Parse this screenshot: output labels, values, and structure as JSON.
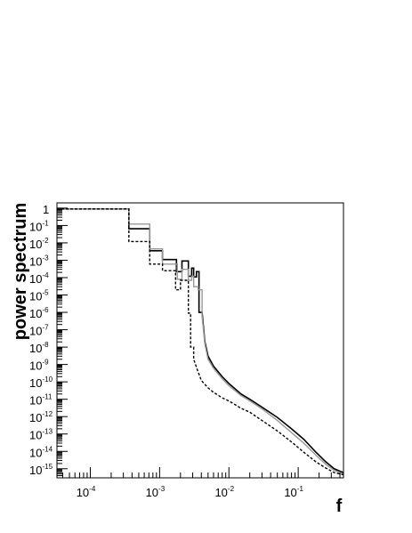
{
  "chart_data": {
    "type": "line",
    "title": "",
    "xlabel": "f",
    "ylabel": "power spectrum",
    "x_scale": "log",
    "y_scale": "log",
    "xlim": [
      3.3e-05,
      0.45
    ],
    "ylim": [
      3e-16,
      2
    ],
    "grid": false,
    "legend": "none",
    "x_ticks": [
      {
        "base": "10",
        "exp": "-4",
        "value": 0.0001
      },
      {
        "base": "10",
        "exp": "-3",
        "value": 0.001
      },
      {
        "base": "10",
        "exp": "-2",
        "value": 0.01
      },
      {
        "base": "10",
        "exp": "-1",
        "value": 0.1
      }
    ],
    "y_ticks": [
      {
        "base": "1",
        "exp": "",
        "value": 1
      },
      {
        "base": "10",
        "exp": "-1",
        "value": 0.1
      },
      {
        "base": "10",
        "exp": "-2",
        "value": 0.01
      },
      {
        "base": "10",
        "exp": "-3",
        "value": 0.001
      },
      {
        "base": "10",
        "exp": "-4",
        "value": 0.0001
      },
      {
        "base": "10",
        "exp": "-5",
        "value": 1e-05
      },
      {
        "base": "10",
        "exp": "-6",
        "value": 1e-06
      },
      {
        "base": "10",
        "exp": "-7",
        "value": 1e-07
      },
      {
        "base": "10",
        "exp": "-8",
        "value": 1e-08
      },
      {
        "base": "10",
        "exp": "-9",
        "value": 1e-09
      },
      {
        "base": "10",
        "exp": "-10",
        "value": 1e-10
      },
      {
        "base": "10",
        "exp": "-11",
        "value": 1e-11
      },
      {
        "base": "10",
        "exp": "-12",
        "value": 1e-12
      },
      {
        "base": "10",
        "exp": "-13",
        "value": 1e-13
      },
      {
        "base": "10",
        "exp": "-14",
        "value": 1e-14
      },
      {
        "base": "10",
        "exp": "-15",
        "value": 1e-15
      }
    ],
    "series": [
      {
        "color": "#000000",
        "style": "solid",
        "width": 1.6,
        "points": [
          [
            3.3e-05,
            0.9
          ],
          [
            0.00036,
            0.9
          ],
          [
            0.00036,
            0.065
          ],
          [
            0.00072,
            0.065
          ],
          [
            0.00072,
            0.0035
          ],
          [
            0.0011,
            0.0035
          ],
          [
            0.0011,
            0.0011
          ],
          [
            0.00175,
            0.0011
          ],
          [
            0.00175,
            0.00022
          ],
          [
            0.0021,
            0.00022
          ],
          [
            0.0021,
            0.0009
          ],
          [
            0.0026,
            0.0009
          ],
          [
            0.0026,
            0.00012
          ],
          [
            0.0029,
            0.00012
          ],
          [
            0.0029,
            0.00035
          ],
          [
            0.0031,
            0.00035
          ],
          [
            0.0031,
            0.00011
          ],
          [
            0.0034,
            0.00011
          ],
          [
            0.0034,
            0.00022
          ],
          [
            0.0037,
            0.00022
          ],
          [
            0.0037,
            1e-06
          ],
          [
            0.0041,
            1e-06
          ],
          [
            0.0045,
            2e-08
          ],
          [
            0.005,
            3e-09
          ],
          [
            0.006,
            8e-10
          ],
          [
            0.008,
            2e-10
          ],
          [
            0.01,
            8e-11
          ],
          [
            0.015,
            2e-11
          ],
          [
            0.02,
            1e-11
          ],
          [
            0.03,
            3.5e-12
          ],
          [
            0.05,
            9e-13
          ],
          [
            0.08,
            2e-13
          ],
          [
            0.12,
            5e-14
          ],
          [
            0.18,
            9e-15
          ],
          [
            0.25,
            2.5e-15
          ],
          [
            0.33,
            1e-15
          ],
          [
            0.45,
            6e-16
          ]
        ]
      },
      {
        "color": "#999999",
        "style": "solid",
        "width": 1.4,
        "points": [
          [
            3.3e-05,
            0.9
          ],
          [
            0.00036,
            0.9
          ],
          [
            0.00036,
            0.12
          ],
          [
            0.00072,
            0.12
          ],
          [
            0.00072,
            0.0045
          ],
          [
            0.0011,
            0.0045
          ],
          [
            0.0011,
            0.0006
          ],
          [
            0.0018,
            0.0006
          ],
          [
            0.0018,
            8e-05
          ],
          [
            0.0021,
            8e-05
          ],
          [
            0.0021,
            0.0003
          ],
          [
            0.0026,
            0.0003
          ],
          [
            0.0026,
            7e-05
          ],
          [
            0.0029,
            7e-05
          ],
          [
            0.0029,
            0.00012
          ],
          [
            0.0031,
            0.00012
          ],
          [
            0.0031,
            3e-05
          ],
          [
            0.0036,
            3e-05
          ],
          [
            0.0036,
            2e-05
          ],
          [
            0.0041,
            2e-05
          ],
          [
            0.0041,
            6e-07
          ],
          [
            0.0045,
            1.5e-08
          ],
          [
            0.005,
            2e-09
          ],
          [
            0.006,
            6e-10
          ],
          [
            0.008,
            1.5e-10
          ],
          [
            0.01,
            6e-11
          ],
          [
            0.015,
            1.6e-11
          ],
          [
            0.02,
            8e-12
          ],
          [
            0.03,
            2.8e-12
          ],
          [
            0.05,
            6e-13
          ],
          [
            0.08,
            1.2e-13
          ],
          [
            0.12,
            3e-14
          ],
          [
            0.18,
            6e-15
          ],
          [
            0.25,
            1.8e-15
          ],
          [
            0.33,
            8e-16
          ],
          [
            0.45,
            5e-16
          ]
        ]
      },
      {
        "color": "#000000",
        "style": "dashed",
        "width": 1.4,
        "points": [
          [
            3.3e-05,
            0.9
          ],
          [
            0.00036,
            0.9
          ],
          [
            0.00036,
            0.012
          ],
          [
            0.00072,
            0.012
          ],
          [
            0.00072,
            0.0006
          ],
          [
            0.0011,
            0.0006
          ],
          [
            0.0011,
            0.00025
          ],
          [
            0.0017,
            0.00025
          ],
          [
            0.0017,
            2e-05
          ],
          [
            0.002,
            2e-05
          ],
          [
            0.002,
            7e-05
          ],
          [
            0.0026,
            7e-05
          ],
          [
            0.0026,
            9e-07
          ],
          [
            0.0028,
            9e-07
          ],
          [
            0.0028,
            1e-08
          ],
          [
            0.0031,
            1e-08
          ],
          [
            0.0031,
            2e-09
          ],
          [
            0.0035,
            5e-10
          ],
          [
            0.004,
            1.2e-10
          ],
          [
            0.005,
            4.5e-11
          ],
          [
            0.006,
            2.5e-11
          ],
          [
            0.008,
            1.2e-11
          ],
          [
            0.01,
            8e-12
          ],
          [
            0.015,
            3e-12
          ],
          [
            0.02,
            1.8e-12
          ],
          [
            0.03,
            6e-13
          ],
          [
            0.05,
            1.5e-13
          ],
          [
            0.08,
            3.5e-14
          ],
          [
            0.12,
            9e-15
          ],
          [
            0.18,
            2.5e-15
          ],
          [
            0.25,
            1.1e-15
          ],
          [
            0.33,
            6e-16
          ],
          [
            0.45,
            4.5e-16
          ]
        ]
      }
    ]
  }
}
